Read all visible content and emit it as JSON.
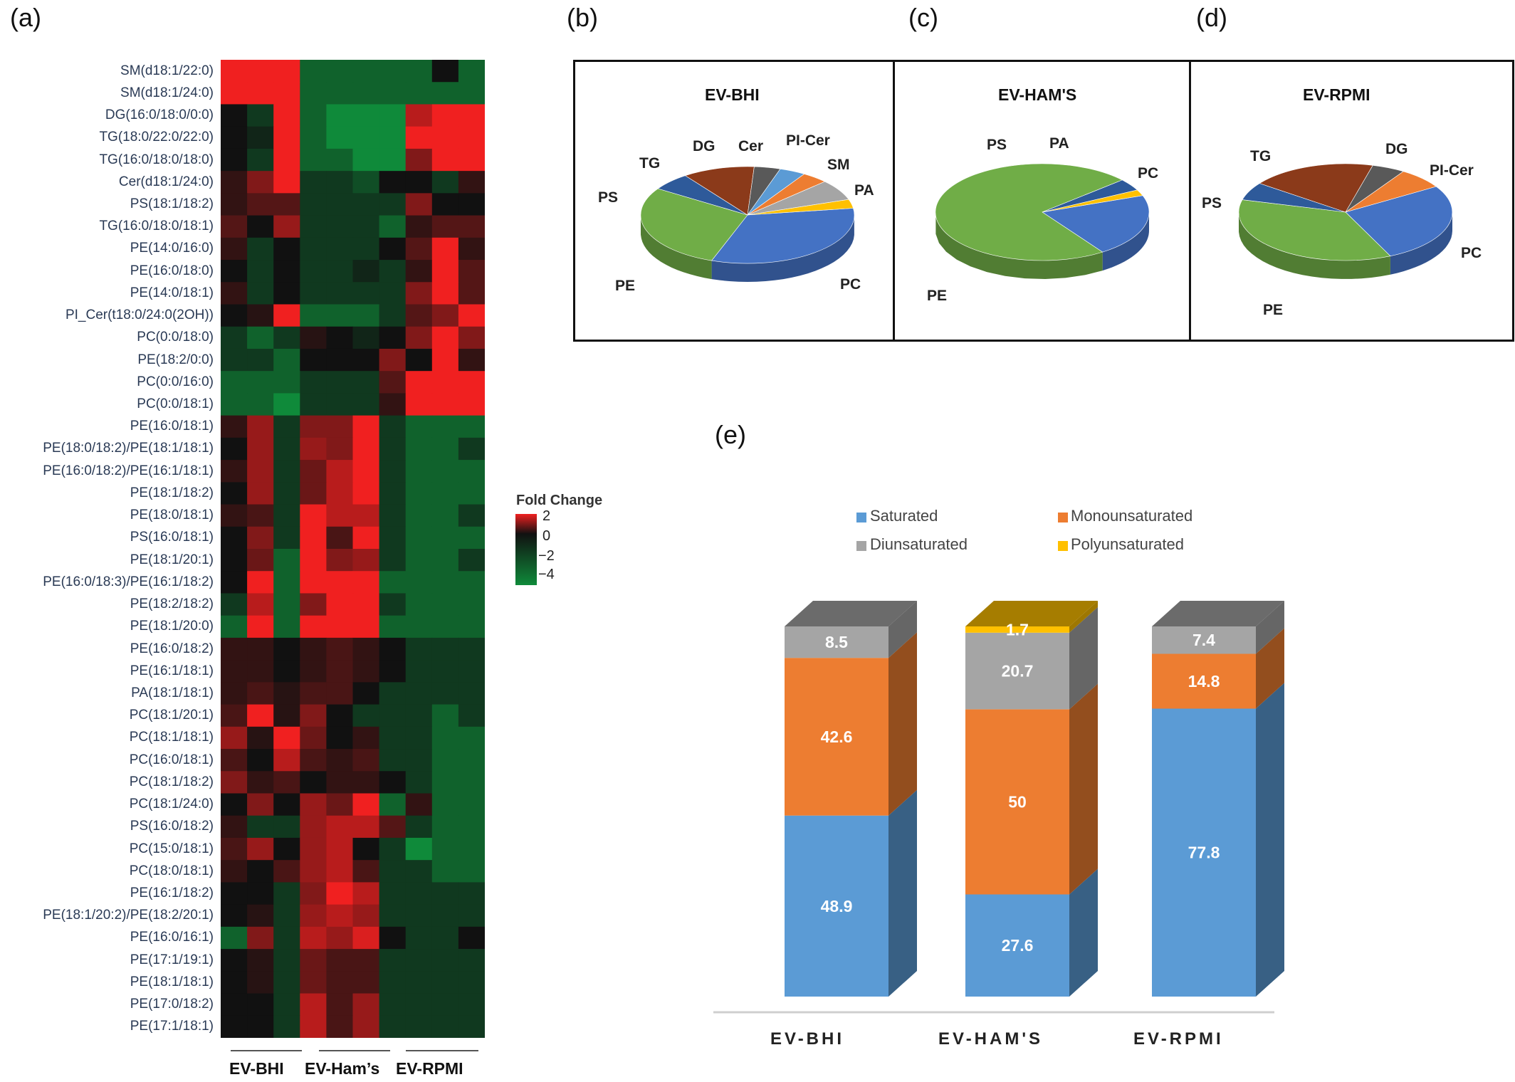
{
  "panel_letters": {
    "a": "(a)",
    "b": "(b)",
    "c": "(c)",
    "d": "(d)",
    "e": "(e)"
  },
  "colors": {
    "heat_high": "#f02020",
    "heat_mid": "#111111",
    "heat_low": "#0f8a3a",
    "pc": "#4472c4",
    "pe": "#70ad47",
    "ps": "#2e5a9a",
    "tg": "#8b3a1a",
    "dg": "#595959",
    "cer": "#5b9bd5",
    "pi_cer": "#ed7d31",
    "sm": "#a5a5a5",
    "pa": "#ffc000",
    "saturated": "#5b9bd5",
    "monounsaturated": "#ed7d31",
    "diunsaturated": "#a5a5a5",
    "polyunsaturated": "#ffc000"
  },
  "chart_data": [
    {
      "type": "heatmap",
      "title": "",
      "legend_title": "Fold Change",
      "legend_ticks": [
        "2",
        "0",
        "−2",
        "−4"
      ],
      "group_labels": [
        "EV-BHI",
        "EV-Ham’s",
        "EV-RPMI"
      ],
      "rows": [
        "SM(d18:1/22:0)",
        "SM(d18:1/24:0)",
        "DG(16:0/18:0/0:0)",
        "TG(18:0/22:0/22:0)",
        "TG(16:0/18:0/18:0)",
        "Cer(d18:1/24:0)",
        "PS(18:1/18:2)",
        "TG(16:0/18:0/18:1)",
        "PE(14:0/16:0)",
        "PE(16:0/18:0)",
        "PE(14:0/18:1)",
        "PI_Cer(t18:0/24:0(2OH))",
        "PC(0:0/18:0)",
        "PE(18:2/0:0)",
        "PC(0:0/16:0)",
        "PC(0:0/18:1)",
        "PE(16:0/18:1)",
        "PE(18:0/18:2)/PE(18:1/18:1)",
        "PE(16:0/18:2)/PE(16:1/18:1)",
        "PE(18:1/18:2)",
        "PE(18:0/18:1)",
        "PS(16:0/18:1)",
        "PE(18:1/20:1)",
        "PE(16:0/18:3)/PE(16:1/18:2)",
        "PE(18:2/18:2)",
        "PE(18:1/20:0)",
        "PE(16:0/18:2)",
        "PE(16:1/18:1)",
        "PA(18:1/18:1)",
        "PC(18:1/20:1)",
        "PC(18:1/18:1)",
        "PC(16:0/18:1)",
        "PC(18:1/18:2)",
        "PC(18:1/24:0)",
        "PS(16:0/18:2)",
        "PC(15:0/18:1)",
        "PC(18:0/18:1)",
        "PE(16:1/18:2)",
        "PE(18:1/20:2)/PE(18:2/20:1)",
        "PE(16:0/16:1)",
        "PE(17:1/19:1)",
        "PE(18:1/18:1)",
        "PE(17:0/18:2)",
        "PE(17:1/18:1)"
      ],
      "values": [
        [
          2,
          2,
          2,
          -2,
          -2,
          -2,
          -2,
          -2,
          0,
          -2
        ],
        [
          2,
          2,
          2,
          -2,
          -2,
          -2,
          -2,
          -2,
          -2,
          -2
        ],
        [
          0,
          -1,
          2,
          -2,
          -3,
          -3,
          -3,
          1.5,
          2,
          2
        ],
        [
          0,
          -0.5,
          2,
          -2,
          -3,
          -3,
          -3,
          2,
          2,
          2
        ],
        [
          0,
          -1,
          2,
          -2,
          -2,
          -3,
          -3,
          1,
          2,
          2
        ],
        [
          0.3,
          1,
          2,
          -1,
          -1,
          -1.5,
          0,
          0,
          -1,
          0.3
        ],
        [
          0.3,
          0.6,
          0.6,
          -1,
          -1,
          -1,
          -1,
          1,
          0,
          0
        ],
        [
          0.6,
          0,
          1.2,
          -1,
          -1,
          -1,
          -2,
          0.3,
          0.6,
          0.6
        ],
        [
          0.3,
          -1,
          0,
          -1,
          -1,
          -1,
          0,
          0.6,
          2,
          0.3
        ],
        [
          0,
          -1,
          0,
          -1,
          -1,
          -0.5,
          -1,
          0.3,
          2,
          0.6
        ],
        [
          0.3,
          -1,
          0,
          -1,
          -1,
          -1,
          -1,
          1,
          2,
          0.6
        ],
        [
          0,
          0.2,
          2,
          -2,
          -2,
          -2,
          -1,
          0.6,
          1,
          2
        ],
        [
          -1,
          -2,
          -1,
          0.2,
          0,
          -0.5,
          0,
          1,
          2,
          1
        ],
        [
          -1,
          -1,
          -2,
          0,
          0,
          0,
          1,
          0,
          2,
          0.3
        ],
        [
          -2,
          -2,
          -2,
          -1,
          -1,
          -1,
          0.6,
          2,
          2,
          2
        ],
        [
          -2,
          -2,
          -4,
          -1,
          -1,
          -1,
          0.3,
          2,
          2,
          2
        ],
        [
          0.3,
          1.2,
          -1,
          1,
          1,
          2,
          -1,
          -2,
          -2,
          -2
        ],
        [
          0,
          1.2,
          -1,
          1.2,
          1,
          2,
          -1,
          -2,
          -2,
          -1
        ],
        [
          0.3,
          1.2,
          -1,
          0.8,
          1.5,
          2,
          -1,
          -2,
          -2,
          -2
        ],
        [
          0,
          1.2,
          -1,
          0.8,
          1.5,
          2,
          -1,
          -2,
          -2,
          -2
        ],
        [
          0.3,
          0.5,
          -1,
          2,
          1.5,
          1.5,
          -1,
          -2,
          -2,
          -1
        ],
        [
          0,
          1,
          -1,
          2,
          0.5,
          2,
          -1,
          -2,
          -2,
          -2
        ],
        [
          0,
          0.8,
          -2,
          2,
          1,
          1.2,
          -1,
          -2,
          -2,
          -1
        ],
        [
          0,
          2,
          -2,
          2,
          2,
          2,
          -2,
          -2,
          -2,
          -2
        ],
        [
          -1,
          1.5,
          -2,
          1,
          2,
          2,
          -1,
          -2,
          -2,
          -2
        ],
        [
          -2,
          2,
          -2,
          2,
          2,
          2,
          -2,
          -2,
          -2,
          -2
        ],
        [
          0.3,
          0.3,
          0,
          0.3,
          0.5,
          0.3,
          0,
          -1,
          -1,
          -1
        ],
        [
          0.3,
          0.3,
          0,
          0.3,
          0.5,
          0.3,
          0,
          -1,
          -1,
          -1
        ],
        [
          0.3,
          0.5,
          0.2,
          0.5,
          0.5,
          0,
          -1,
          -1,
          -1,
          -1
        ],
        [
          0.5,
          2,
          0.2,
          1,
          0,
          -1,
          -1,
          -1,
          -2,
          -1
        ],
        [
          1.2,
          0.2,
          2,
          0.8,
          0,
          0.3,
          -1,
          -1,
          -2,
          -2
        ],
        [
          0.5,
          0,
          1.5,
          0.5,
          0.3,
          0.5,
          -1,
          -1,
          -2,
          -2
        ],
        [
          1,
          0.3,
          0.5,
          0,
          0.3,
          0.3,
          0,
          -1,
          -2,
          -2
        ],
        [
          0,
          1,
          0,
          1.2,
          0.8,
          2,
          -2,
          0.3,
          -2,
          -2
        ],
        [
          0.3,
          -1,
          -1,
          1.2,
          1.5,
          1.5,
          0.6,
          -1,
          -2,
          -2
        ],
        [
          0.5,
          1.2,
          0,
          1.2,
          1.5,
          0,
          -1,
          -3,
          -2,
          -2
        ],
        [
          0.3,
          0,
          0.5,
          1.2,
          1.5,
          0.5,
          -1,
          -1,
          -2,
          -2
        ],
        [
          0,
          0,
          -1,
          1,
          2,
          1.5,
          -1,
          -1,
          -1,
          -1
        ],
        [
          0,
          0.2,
          -1,
          1.2,
          1.5,
          1.2,
          -1,
          -1,
          -1,
          -1
        ],
        [
          -2,
          1,
          -1,
          1.5,
          1.2,
          1.8,
          0,
          -1,
          -1,
          0
        ],
        [
          0,
          0.2,
          -1,
          0.8,
          0.5,
          0.5,
          -1,
          -1,
          -1,
          -1
        ],
        [
          0,
          0.2,
          -1,
          0.8,
          0.5,
          0.5,
          -1,
          -1,
          -1,
          -1
        ],
        [
          0,
          0,
          -1,
          1.5,
          0.5,
          1.2,
          -1,
          -1,
          -1,
          -1
        ],
        [
          0,
          0,
          -1,
          1.5,
          0.5,
          1.2,
          -1,
          -1,
          -1,
          -1
        ]
      ]
    },
    {
      "type": "pie",
      "title": "EV-BHI",
      "slices": [
        {
          "label": "PC",
          "value": 33,
          "color": "#4472c4"
        },
        {
          "label": "PE",
          "value": 29,
          "color": "#70ad47"
        },
        {
          "label": "PS",
          "value": 6,
          "color": "#2e5a9a"
        },
        {
          "label": "TG",
          "value": 11,
          "color": "#8b3a1a"
        },
        {
          "label": "DG",
          "value": 4,
          "color": "#595959"
        },
        {
          "label": "Cer",
          "value": 4,
          "color": "#5b9bd5"
        },
        {
          "label": "PI-Cer",
          "value": 4,
          "color": "#ed7d31"
        },
        {
          "label": "SM",
          "value": 7,
          "color": "#a5a5a5"
        },
        {
          "label": "PA",
          "value": 3,
          "color": "#ffc000"
        }
      ]
    },
    {
      "type": "pie",
      "title": "EV-HAM'S",
      "slices": [
        {
          "label": "PC",
          "value": 21,
          "color": "#4472c4"
        },
        {
          "label": "PE",
          "value": 73,
          "color": "#70ad47"
        },
        {
          "label": "PS",
          "value": 4,
          "color": "#2e5a9a"
        },
        {
          "label": "PA",
          "value": 2,
          "color": "#ffc000"
        }
      ]
    },
    {
      "type": "pie",
      "title": "EV-RPMI",
      "slices": [
        {
          "label": "PC",
          "value": 27,
          "color": "#4472c4"
        },
        {
          "label": "PE",
          "value": 36,
          "color": "#70ad47"
        },
        {
          "label": "PS",
          "value": 6,
          "color": "#2e5a9a"
        },
        {
          "label": "TG",
          "value": 19,
          "color": "#8b3a1a"
        },
        {
          "label": "DG",
          "value": 5,
          "color": "#595959"
        },
        {
          "label": "PI-Cer",
          "value": 7,
          "color": "#ed7d31"
        }
      ]
    },
    {
      "type": "bar",
      "stacked": true,
      "title": "",
      "categories": [
        "EV-BHI",
        "EV-HAM'S",
        "EV-RPMI"
      ],
      "series": [
        {
          "name": "Saturated",
          "values": [
            48.9,
            27.6,
            77.8
          ],
          "color": "#5b9bd5"
        },
        {
          "name": "Monounsaturated",
          "values": [
            42.6,
            50,
            14.8
          ],
          "color": "#ed7d31"
        },
        {
          "name": "Diunsaturated",
          "values": [
            8.5,
            20.7,
            7.4
          ],
          "color": "#a5a5a5"
        },
        {
          "name": "Polyunsaturated",
          "values": [
            0,
            1.7,
            0
          ],
          "color": "#ffc000"
        }
      ],
      "value_labels": [
        [
          "48.9",
          "42.6",
          "8.5",
          ""
        ],
        [
          "27.6",
          "50",
          "20.7",
          "1.7"
        ],
        [
          "77.8",
          "14.8",
          "7.4",
          ""
        ]
      ],
      "ylim": [
        0,
        100
      ]
    }
  ]
}
